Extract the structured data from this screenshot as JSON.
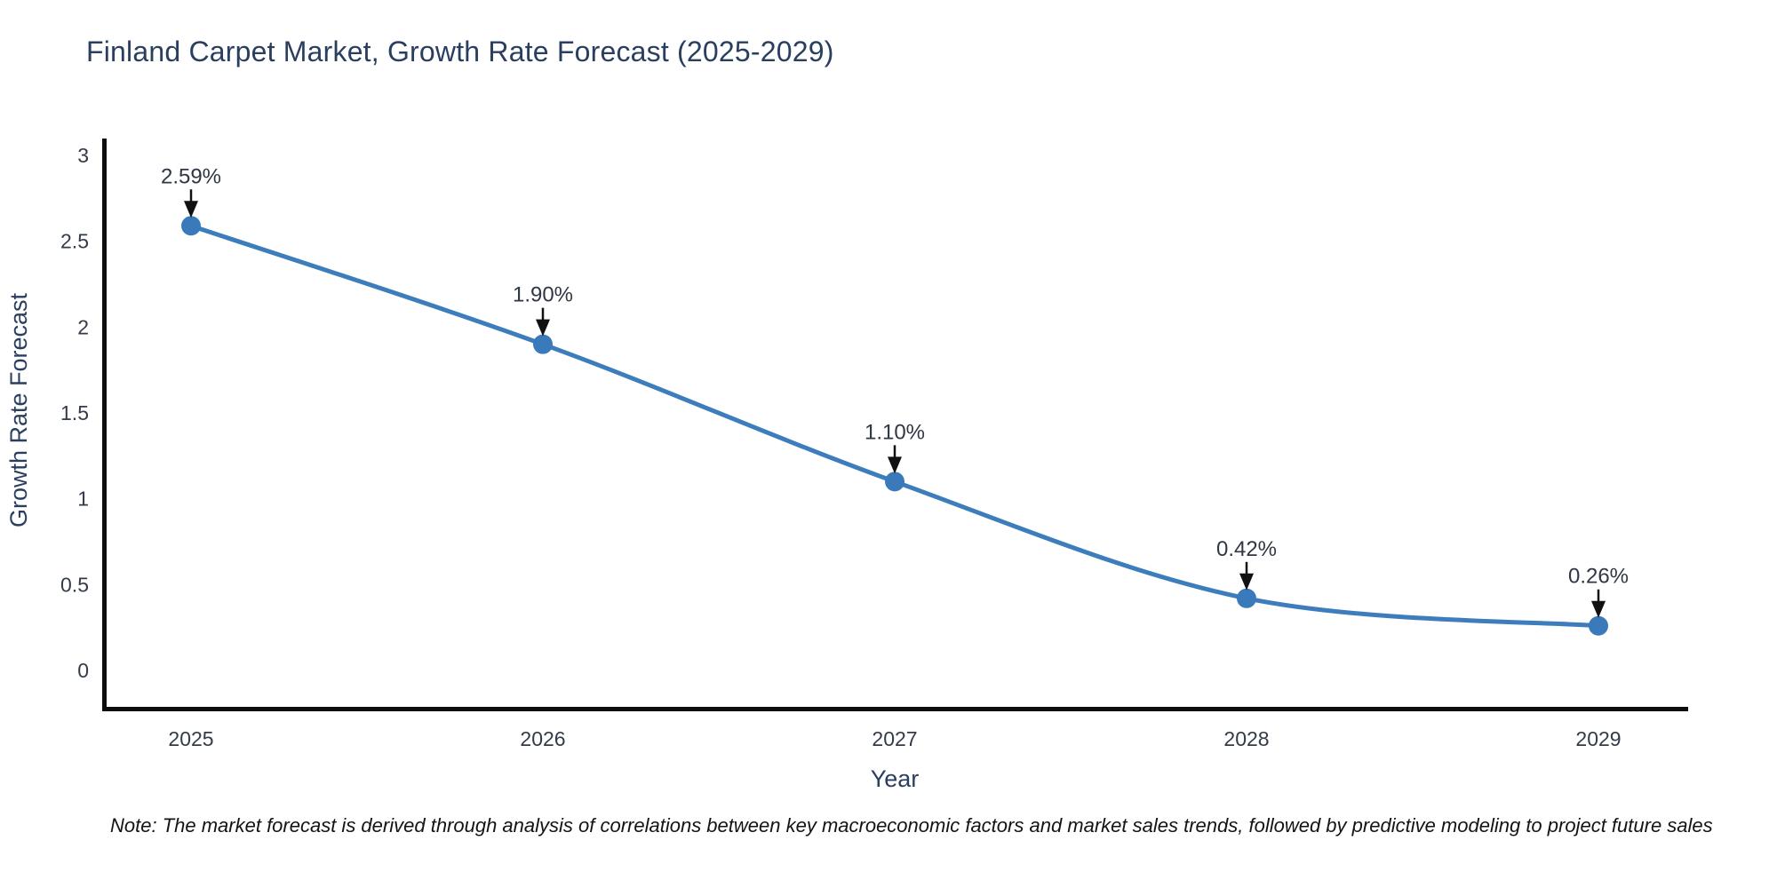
{
  "note": "Note: The market forecast is derived through analysis of correlations between key macroeconomic factors and market sales trends, followed by predictive modeling to project future sales",
  "chart_data": {
    "type": "line",
    "title": "Finland Carpet Market, Growth Rate Forecast (2025-2029)",
    "xlabel": "Year",
    "ylabel": "Growth Rate Forecast",
    "x": [
      "2025",
      "2026",
      "2027",
      "2028",
      "2029"
    ],
    "values": [
      2.59,
      1.9,
      1.1,
      0.42,
      0.26
    ],
    "point_labels": [
      "2.59%",
      "1.90%",
      "1.10%",
      "0.42%",
      "0.26%"
    ],
    "ytick_labels": [
      "0",
      "0.5",
      "1",
      "1.5",
      "2",
      "2.5",
      "3"
    ],
    "ylim": [
      0,
      3
    ],
    "line_shape": "spline",
    "grid": false,
    "legend_position": "none",
    "annotation_arrows": true,
    "colors": {
      "line": "#3d7dbc",
      "marker": "#3a79ba",
      "axis": "#0d0d0d",
      "title_text": "#2a3f5f",
      "axis_title_text": "#2a3f5f",
      "tick_text": "#333b49",
      "annotation_text": "#2f3644",
      "arrow": "#111111",
      "note_text": "#141414",
      "background": "#ffffff"
    }
  }
}
